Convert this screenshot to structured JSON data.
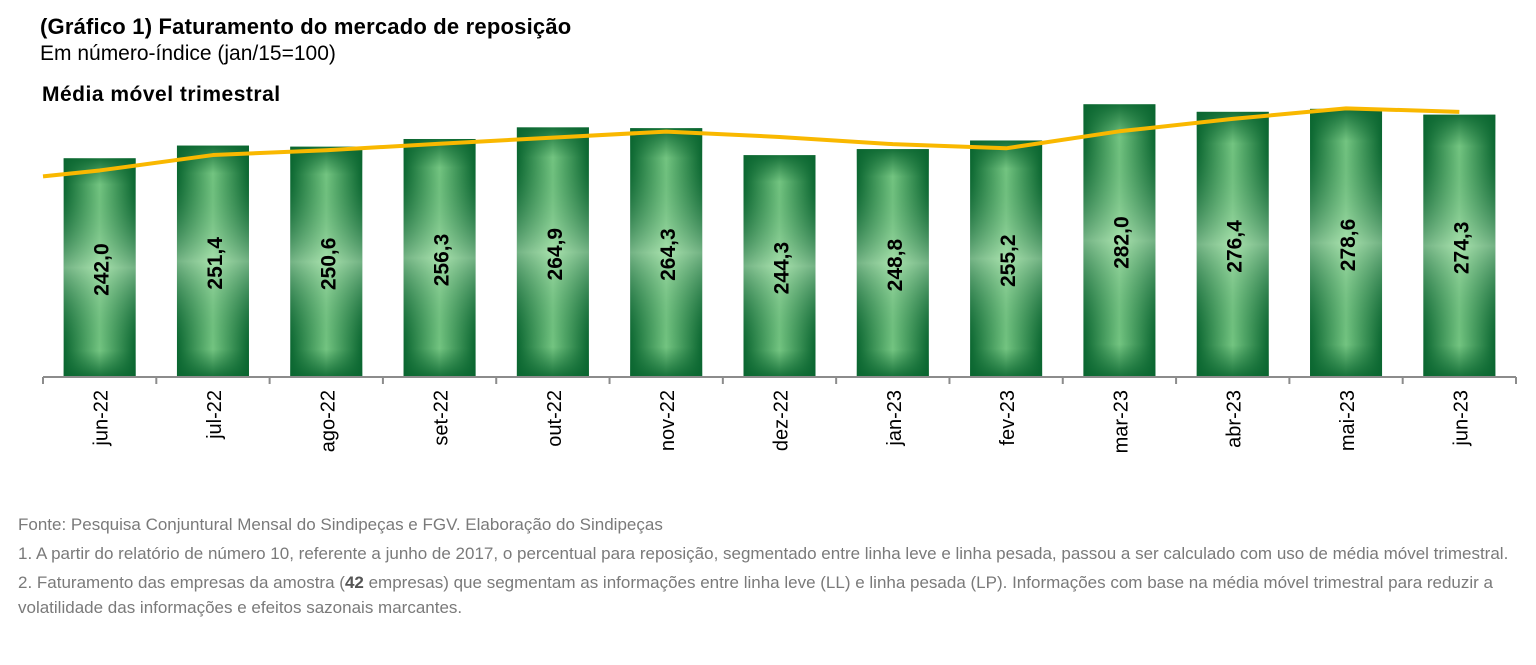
{
  "chart_data": {
    "type": "bar",
    "title": "(Gráfico 1) Faturamento do mercado de reposição",
    "subtitle": "Em número-índice (jan/15=100)",
    "series_label": "Média móvel trimestral",
    "categories": [
      "jun-22",
      "jul-22",
      "ago-22",
      "set-22",
      "out-22",
      "nov-22",
      "dez-22",
      "jan-23",
      "fev-23",
      "mar-23",
      "abr-23",
      "mai-23",
      "jun-23"
    ],
    "series": [
      {
        "name": "Faturamento",
        "type": "bar",
        "values": [
          242.0,
          251.4,
          250.6,
          256.3,
          264.9,
          264.3,
          244.3,
          248.8,
          255.2,
          282.0,
          276.4,
          278.6,
          274.3
        ],
        "labels": [
          "242,0",
          "251,4",
          "250,6",
          "256,3",
          "264,9",
          "264,3",
          "244,3",
          "248,8",
          "255,2",
          "282,0",
          "276,4",
          "278,6",
          "274,3"
        ]
      },
      {
        "name": "Média móvel trimestral",
        "type": "line",
        "values": [
          233.0,
          244.4,
          248.0,
          252.8,
          257.3,
          261.8,
          257.8,
          252.5,
          249.4,
          262.0,
          271.2,
          279.0,
          276.4
        ],
        "lead_in_value": 228.6
      }
    ],
    "ylim": [
      80,
      300
    ],
    "grid": false,
    "y_axis_visible": false,
    "colors": {
      "bar_dark": "#0a6630",
      "bar_light": "#a9e2ab",
      "line": "#f9b800",
      "axis": "#8c8c8c"
    }
  },
  "notes": {
    "source": "Fonte: Pesquisa Conjuntural Mensal do Sindipeças e FGV. Elaboração do Sindipeças",
    "note1": "1. A partir do relatório de número 10, referente a junho de 2017, o percentual para reposição, segmentado entre linha leve e linha pesada, passou a ser calculado com uso de média móvel trimestral.",
    "note2_before": "2. Faturamento das empresas da amostra (",
    "note2_count": "42",
    "note2_after": " empresas) que segmentam as informações entre linha leve (LL) e linha pesada (LP). Informações com base na média móvel trimestral para reduzir a volatilidade das informações e efeitos sazonais marcantes."
  }
}
